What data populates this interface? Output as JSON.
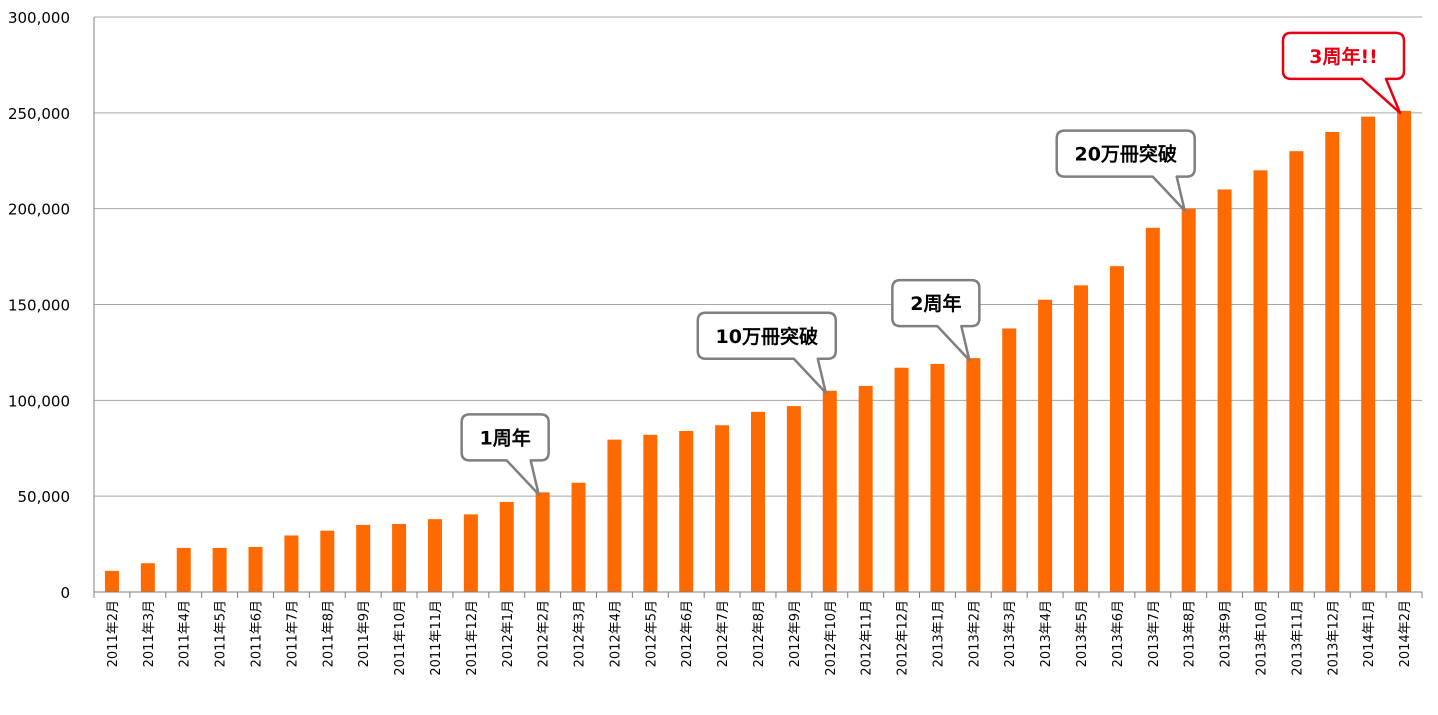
{
  "chart_data": {
    "type": "bar",
    "title": "",
    "xlabel": "",
    "ylabel": "",
    "ylim": [
      0,
      300000
    ],
    "yticks": [
      {
        "value": 0,
        "label": "0"
      },
      {
        "value": 50000,
        "label": "50,000"
      },
      {
        "value": 100000,
        "label": "100,000"
      },
      {
        "value": 150000,
        "label": "150,000"
      },
      {
        "value": 200000,
        "label": "200,000"
      },
      {
        "value": 250000,
        "label": "250,000"
      },
      {
        "value": 300000,
        "label": "300,000"
      }
    ],
    "grid": true,
    "bar_color": "#FF6A00",
    "categories": [
      "2011年2月",
      "2011年3月",
      "2011年4月",
      "2011年5月",
      "2011年6月",
      "2011年7月",
      "2011年8月",
      "2011年9月",
      "2011年10月",
      "2011年11月",
      "2011年12月",
      "2012年1月",
      "2012年2月",
      "2012年3月",
      "2012年4月",
      "2012年5月",
      "2012年6月",
      "2012年7月",
      "2012年8月",
      "2012年9月",
      "2012年10月",
      "2012年11月",
      "2012年12月",
      "2013年1月",
      "2013年2月",
      "2013年3月",
      "2013年4月",
      "2013年5月",
      "2013年6月",
      "2013年7月",
      "2013年8月",
      "2013年9月",
      "2013年10月",
      "2013年11月",
      "2013年12月",
      "2014年1月",
      "2014年2月"
    ],
    "values": [
      11000,
      15000,
      23000,
      23000,
      23500,
      29500,
      32000,
      35000,
      35500,
      38000,
      40500,
      47000,
      52000,
      57000,
      79500,
      82000,
      84000,
      87000,
      94000,
      97000,
      105000,
      107500,
      117000,
      119000,
      122000,
      137500,
      152500,
      160000,
      170000,
      190000,
      200000,
      210000,
      220000,
      230000,
      240000,
      248000,
      251000
    ],
    "annotations": [
      {
        "text": "1周年",
        "category_index": 12,
        "color": "#000000",
        "border": "#7f7f7f"
      },
      {
        "text": "10万冊突破",
        "category_index": 20,
        "color": "#000000",
        "border": "#7f7f7f"
      },
      {
        "text": "2周年",
        "category_index": 24,
        "color": "#000000",
        "border": "#7f7f7f"
      },
      {
        "text": "20万冊突破",
        "category_index": 30,
        "color": "#000000",
        "border": "#7f7f7f"
      },
      {
        "text": "3周年!!",
        "category_index": 36,
        "color": "#e60012",
        "border": "#e60012"
      }
    ]
  }
}
